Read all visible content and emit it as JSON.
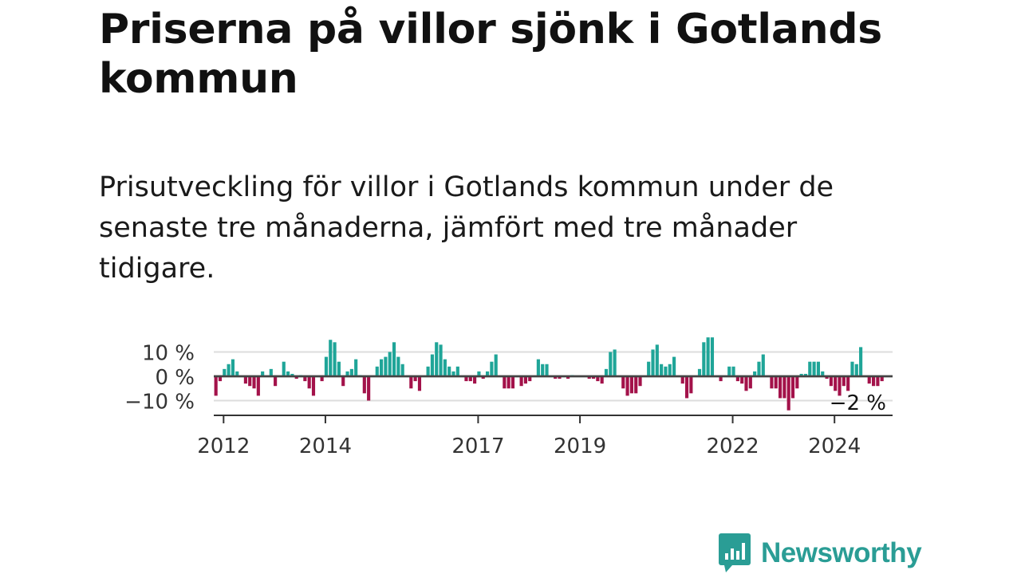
{
  "header": {
    "title": "Priserna på villor sjönk i Gotlands kommun",
    "subtitle": "Prisutveckling för villor i Gotlands kommun under de senaste tre månaderna, jämfört med tre månader tidigare."
  },
  "brand": {
    "name": "Newsworthy",
    "icon": "bar-chart-speech-bubble-icon",
    "color": "#2a9d95"
  },
  "colors": {
    "positive": "#1fa598",
    "negative": "#a3124a",
    "grid": "#dddddd",
    "zero": "#444444"
  },
  "chart_data": {
    "type": "bar",
    "x_unit": "month",
    "x_start": "2011-11",
    "x_end": "2025-02",
    "ylim": [
      -15,
      17
    ],
    "y_ticks": [
      {
        "value": 10,
        "label": "10 %"
      },
      {
        "value": 0,
        "label": "0 %"
      },
      {
        "value": -10,
        "label": "−10 %"
      }
    ],
    "x_ticks": [
      {
        "value": "2012-01",
        "label": "2012"
      },
      {
        "value": "2014-01",
        "label": "2014"
      },
      {
        "value": "2017-01",
        "label": "2017"
      },
      {
        "value": "2019-01",
        "label": "2019"
      },
      {
        "value": "2022-01",
        "label": "2022"
      },
      {
        "value": "2024-01",
        "label": "2024"
      }
    ],
    "last_value_label": "−2 %",
    "values": [
      -8,
      -2,
      3,
      5,
      7,
      2,
      0,
      -3,
      -4,
      -5,
      -8,
      2,
      0,
      3,
      -4,
      0,
      6,
      2,
      1,
      -1,
      0.5,
      -2,
      -5,
      -8,
      0,
      -2,
      8,
      15,
      14,
      6,
      -4,
      2,
      3,
      7,
      0.5,
      -7,
      -10,
      0,
      4,
      7,
      8,
      10,
      14,
      8,
      5,
      0,
      -5,
      -2,
      -6,
      0,
      4,
      9,
      14,
      13,
      7,
      4,
      2,
      4,
      0,
      -2,
      -2,
      -3,
      2,
      -1,
      2,
      6,
      9,
      0,
      -5,
      -5,
      -5,
      0,
      -4,
      -3,
      -2,
      0,
      7,
      5,
      5,
      0,
      -1,
      -1,
      0,
      -1,
      0.5,
      0,
      0,
      0,
      -1,
      -1,
      -2,
      -3,
      3,
      10,
      11,
      0,
      -5,
      -8,
      -7,
      -7,
      -4,
      0,
      6,
      11,
      13,
      5,
      4,
      5,
      8,
      0,
      -3,
      -9,
      -7,
      0,
      3,
      14,
      16,
      16,
      0,
      -2,
      0,
      4,
      4,
      -2,
      -3,
      -6,
      -5,
      2,
      6,
      9,
      0,
      -5,
      -5,
      -9,
      -9,
      -14,
      -9,
      -5,
      1,
      1,
      6,
      6,
      6,
      2,
      -1,
      -4,
      -6,
      -8,
      -4,
      -6,
      6,
      5,
      12,
      0,
      -3,
      -4,
      -4,
      -2
    ]
  }
}
